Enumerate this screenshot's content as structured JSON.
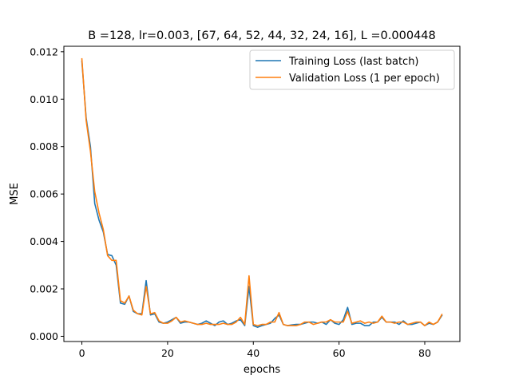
{
  "chart_data": {
    "type": "line",
    "title": "B =128, lr=0.003, [67, 64, 52, 44, 32, 24, 16], L =0.000448",
    "xlabel": "epochs",
    "ylabel": "MSE",
    "xlim": [
      -4.2,
      88.2
    ],
    "ylim": [
      -0.00022,
      0.01223
    ],
    "xticks": [
      0,
      20,
      40,
      60,
      80
    ],
    "xtick_labels": [
      "0",
      "20",
      "40",
      "60",
      "80"
    ],
    "yticks": [
      0.0,
      0.002,
      0.004,
      0.006,
      0.008,
      0.01,
      0.012
    ],
    "ytick_labels": [
      "0.000",
      "0.002",
      "0.004",
      "0.006",
      "0.008",
      "0.010",
      "0.012"
    ],
    "grid": false,
    "legend_position": "upper right",
    "x": [
      0,
      1,
      2,
      3,
      4,
      5,
      6,
      7,
      8,
      9,
      10,
      11,
      12,
      13,
      14,
      15,
      16,
      17,
      18,
      19,
      20,
      21,
      22,
      23,
      24,
      25,
      26,
      27,
      28,
      29,
      30,
      31,
      32,
      33,
      34,
      35,
      36,
      37,
      38,
      39,
      40,
      41,
      42,
      43,
      44,
      45,
      46,
      47,
      48,
      49,
      50,
      51,
      52,
      53,
      54,
      55,
      56,
      57,
      58,
      59,
      60,
      61,
      62,
      63,
      64,
      65,
      66,
      67,
      68,
      69,
      70,
      71,
      72,
      73,
      74,
      75,
      76,
      77,
      78,
      79,
      80,
      81,
      82,
      83,
      84
    ],
    "series": [
      {
        "name": "Training Loss (last batch)",
        "color": "#1f77b4",
        "values": [
          0.0116,
          0.0092,
          0.008,
          0.0056,
          0.0049,
          0.0044,
          0.00345,
          0.0034,
          0.003,
          0.0014,
          0.00135,
          0.0017,
          0.00105,
          0.00095,
          0.00095,
          0.00235,
          0.0009,
          0.00095,
          0.0006,
          0.00055,
          0.0006,
          0.0007,
          0.0008,
          0.00055,
          0.0006,
          0.0006,
          0.00055,
          0.0005,
          0.00055,
          0.00065,
          0.00055,
          0.00045,
          0.0006,
          0.00065,
          0.0005,
          0.00055,
          0.00065,
          0.0007,
          0.00045,
          0.0021,
          0.00045,
          0.00038,
          0.00045,
          0.0005,
          0.00055,
          0.00075,
          0.0009,
          0.0005,
          0.00045,
          0.00048,
          0.0005,
          0.0005,
          0.00055,
          0.0006,
          0.0006,
          0.00055,
          0.0006,
          0.0005,
          0.0007,
          0.00055,
          0.0005,
          0.0007,
          0.00122,
          0.0005,
          0.00055,
          0.00055,
          0.00045,
          0.00045,
          0.0006,
          0.0006,
          0.0008,
          0.0006,
          0.0006,
          0.0006,
          0.0005,
          0.00065,
          0.0005,
          0.0005,
          0.00055,
          0.0006,
          0.00045,
          0.00055,
          0.0005,
          0.0006,
          0.00088
        ]
      },
      {
        "name": "Validation Loss (1 per epoch)",
        "color": "#ff7f0e",
        "values": [
          0.0117,
          0.0091,
          0.0078,
          0.0061,
          0.0052,
          0.0045,
          0.0034,
          0.0032,
          0.0032,
          0.0015,
          0.0014,
          0.0017,
          0.0011,
          0.00095,
          0.0009,
          0.0021,
          0.00095,
          0.001,
          0.00065,
          0.00055,
          0.00055,
          0.00065,
          0.0008,
          0.0006,
          0.00065,
          0.0006,
          0.00055,
          0.0005,
          0.0005,
          0.00055,
          0.0005,
          0.0005,
          0.0005,
          0.00055,
          0.0005,
          0.0005,
          0.0006,
          0.0008,
          0.0005,
          0.00255,
          0.0005,
          0.00045,
          0.0005,
          0.0005,
          0.0006,
          0.0006,
          0.001,
          0.0005,
          0.00045,
          0.00045,
          0.00045,
          0.0005,
          0.0006,
          0.0006,
          0.0005,
          0.00055,
          0.0006,
          0.0006,
          0.0007,
          0.0006,
          0.0006,
          0.0006,
          0.00105,
          0.00055,
          0.0006,
          0.00065,
          0.00055,
          0.0006,
          0.00055,
          0.0006,
          0.00085,
          0.0006,
          0.0006,
          0.00055,
          0.0006,
          0.0006,
          0.0005,
          0.00055,
          0.0006,
          0.0006,
          0.00045,
          0.0006,
          0.0005,
          0.0006,
          0.00092
        ]
      }
    ]
  }
}
